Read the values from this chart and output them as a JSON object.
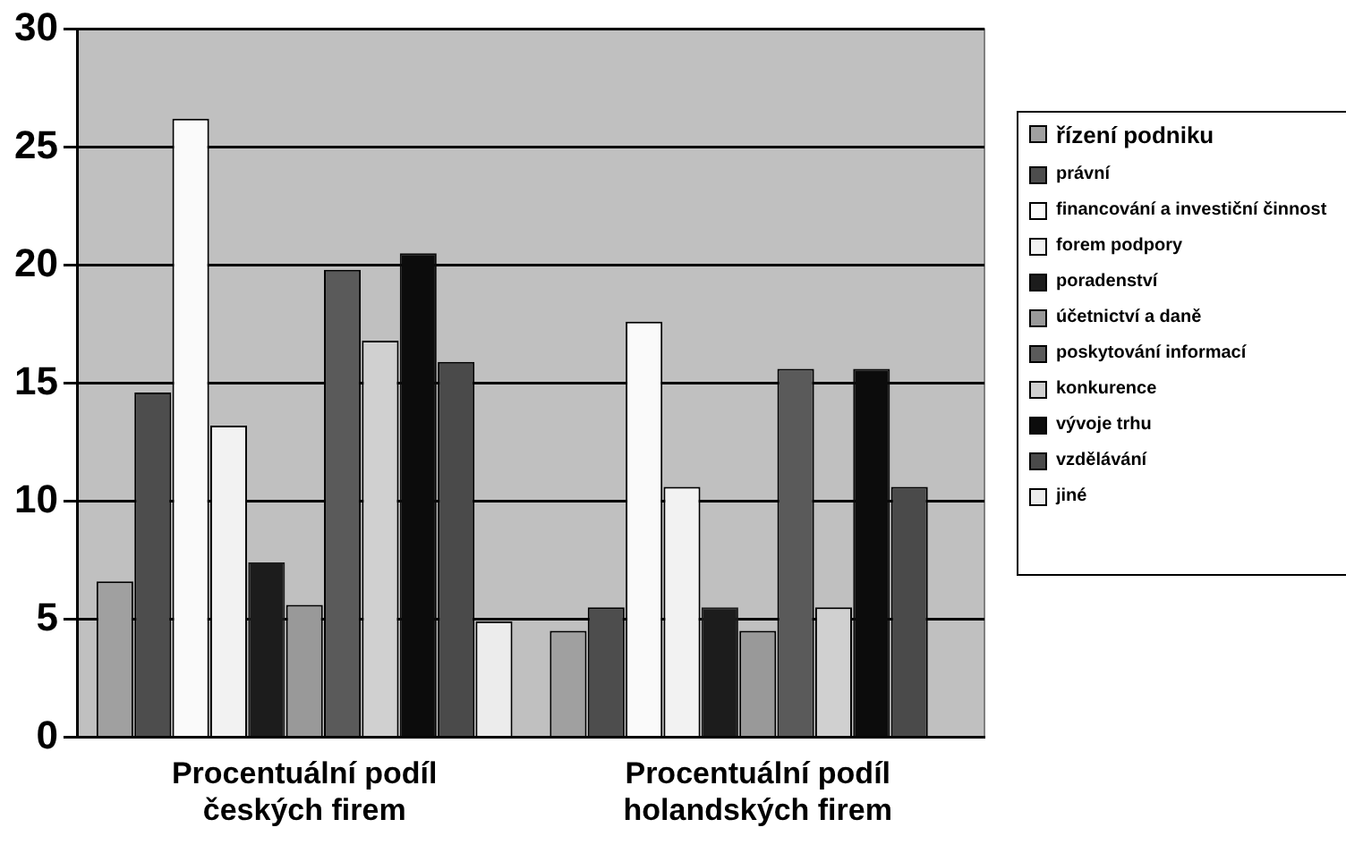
{
  "chart_data": {
    "type": "bar",
    "categories": [
      "Procentuální podíl českých firem",
      "Procentuální podíl holandských firem"
    ],
    "series": [
      {
        "name": "řízení podniku",
        "color": "#a0a0a0",
        "values": [
          6.6,
          4.5
        ]
      },
      {
        "name": "právní",
        "color": "#4d4d4d",
        "values": [
          14.6,
          5.5
        ]
      },
      {
        "name": "financování a investiční činnost",
        "color": "#fafafa",
        "values": [
          26.2,
          17.6
        ]
      },
      {
        "name": "forem podpory",
        "color": "#f2f2f2",
        "values": [
          13.2,
          10.6
        ]
      },
      {
        "name": "poradenství",
        "color": "#1c1c1c",
        "values": [
          7.4,
          5.5
        ]
      },
      {
        "name": "účetnictví a daně",
        "color": "#999999",
        "values": [
          5.6,
          4.5
        ]
      },
      {
        "name": "poskytování informací",
        "color": "#5a5a5a",
        "values": [
          19.8,
          15.6
        ]
      },
      {
        "name": "konkurence",
        "color": "#d0d0d0",
        "values": [
          16.8,
          5.5
        ]
      },
      {
        "name": "vývoje trhu",
        "color": "#0c0c0c",
        "values": [
          20.5,
          15.6
        ]
      },
      {
        "name": "vzdělávání",
        "color": "#4a4a4a",
        "values": [
          15.9,
          10.6
        ]
      },
      {
        "name": "jiné",
        "color": "#ececec",
        "values": [
          4.9,
          0
        ]
      }
    ],
    "ylim": [
      0,
      30
    ],
    "yticks": [
      0,
      5,
      10,
      15,
      20,
      25,
      30
    ],
    "grid": "y",
    "legend": "right"
  }
}
